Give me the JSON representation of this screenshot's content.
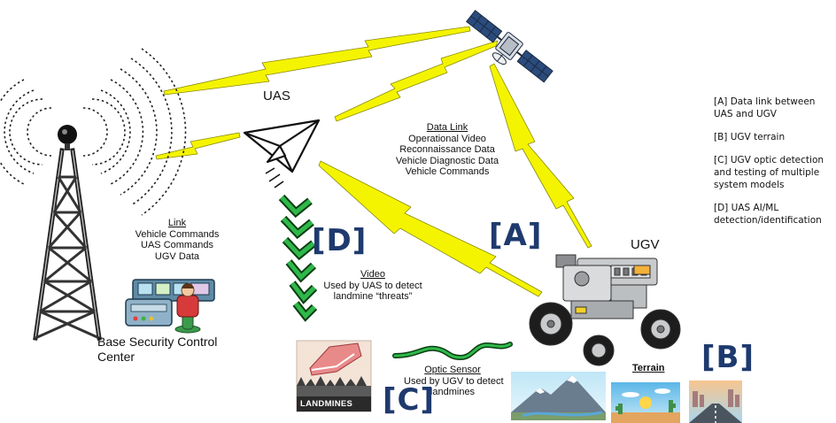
{
  "labels": {
    "uas": "UAS",
    "ugv": "UGV",
    "base_line1": "Base Security Control",
    "base_line2": "Center",
    "terrain": "Terrain",
    "landmines": "LANDMINES"
  },
  "brackets": {
    "a": "[A]",
    "b": "[B]",
    "c": "[C]",
    "d": "[D]"
  },
  "link_box": {
    "title": "Link",
    "lines": [
      "Vehicle Commands",
      "UAS Commands",
      "UGV Data"
    ]
  },
  "data_link_box": {
    "title": "Data Link",
    "lines": [
      "Operational Video",
      "Reconnaissance Data",
      "Vehicle Diagnostic Data",
      "Vehicle Commands"
    ]
  },
  "video_box": {
    "title": "Video",
    "lines": [
      "Used by UAS to detect",
      "landmine “threats”"
    ]
  },
  "optic_box": {
    "title": "Optic Sensor",
    "lines": [
      "Used by UGV to detect",
      "landmines"
    ]
  },
  "legend": [
    "[A] Data link between UAS and UGV",
    "[B] UGV terrain",
    "[C] UGV optic detection and testing of multiple system models",
    "[D] UAS AI/ML detection/identification"
  ],
  "colors": {
    "bolt": "#f4f400",
    "bolt_edge": "#8a8a00",
    "bracket": "#1e3a6e",
    "green": "#2fb84a"
  }
}
